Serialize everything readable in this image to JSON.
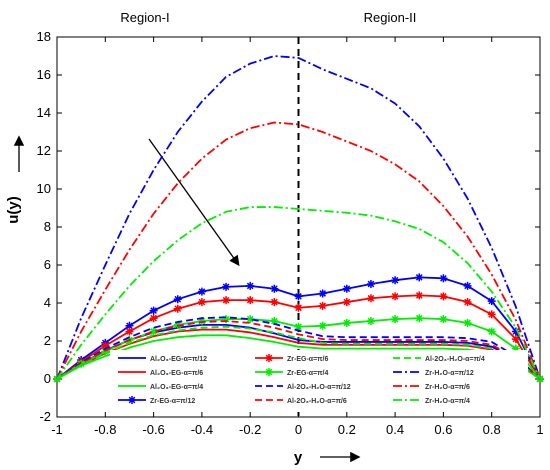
{
  "chart_data": {
    "type": "line",
    "title": "",
    "xlabel": "y",
    "ylabel": "u(y)",
    "xlim": [
      -1,
      1
    ],
    "ylim": [
      -2,
      18
    ],
    "xticks": [
      "-1",
      "-0.8",
      "-0.6",
      "-0.4",
      "-0.2",
      "0",
      "0.2",
      "0.4",
      "0.6",
      "0.8",
      "1"
    ],
    "yticks": [
      "-2",
      "0",
      "2",
      "4",
      "6",
      "8",
      "10",
      "12",
      "14",
      "16",
      "18"
    ],
    "grid": false,
    "legend_position": "bottom",
    "regions": [
      "Region-I",
      "Region-II"
    ],
    "divider_x": 0,
    "x": [
      -1,
      -0.9,
      -0.8,
      -0.7,
      -0.6,
      -0.5,
      -0.4,
      -0.3,
      -0.2,
      -0.1,
      0,
      0.1,
      0.2,
      0.3,
      0.4,
      0.5,
      0.6,
      0.7,
      0.8,
      0.9,
      1
    ],
    "series": [
      {
        "name": "Al₂O₃-EG-α=π/12",
        "color": "#0000ff",
        "dash": "solid",
        "marker": "none",
        "values": [
          0,
          0.8,
          1.5,
          2.05,
          2.45,
          2.7,
          2.85,
          2.85,
          2.7,
          2.4,
          2.05,
          1.95,
          1.95,
          1.95,
          1.95,
          1.95,
          1.95,
          1.9,
          1.7,
          1.05,
          0
        ]
      },
      {
        "name": "Al₂O₃-EG-α=π/6",
        "color": "#ff0000",
        "dash": "solid",
        "marker": "none",
        "values": [
          0,
          0.75,
          1.35,
          1.85,
          2.25,
          2.5,
          2.6,
          2.6,
          2.45,
          2.2,
          1.9,
          1.8,
          1.8,
          1.8,
          1.8,
          1.8,
          1.8,
          1.75,
          1.55,
          0.95,
          0
        ]
      },
      {
        "name": "Al₂O₃-EG-α=π/4",
        "color": "#00ee00",
        "dash": "solid",
        "marker": "none",
        "values": [
          0,
          0.7,
          1.2,
          1.65,
          2.0,
          2.2,
          2.3,
          2.3,
          2.15,
          1.95,
          1.7,
          1.6,
          1.6,
          1.6,
          1.6,
          1.6,
          1.6,
          1.55,
          1.35,
          0.85,
          0
        ]
      },
      {
        "name": "Zr-EG-α=π/12",
        "color": "#0000ff",
        "dash": "solid",
        "marker": "star",
        "values": [
          0,
          1.0,
          1.9,
          2.8,
          3.6,
          4.2,
          4.6,
          4.85,
          4.9,
          4.75,
          4.35,
          4.5,
          4.75,
          5.0,
          5.2,
          5.35,
          5.3,
          4.9,
          4.1,
          2.5,
          0
        ]
      },
      {
        "name": "Zr-EG-α=π/6",
        "color": "#ff0000",
        "dash": "solid",
        "marker": "star",
        "values": [
          0,
          0.9,
          1.75,
          2.5,
          3.2,
          3.7,
          4.05,
          4.15,
          4.15,
          4.05,
          3.75,
          3.85,
          4.05,
          4.25,
          4.35,
          4.4,
          4.35,
          4.05,
          3.4,
          2.1,
          0
        ]
      },
      {
        "name": "Zr-EG-α=π/4",
        "color": "#00ee00",
        "dash": "solid",
        "marker": "star",
        "values": [
          0,
          0.8,
          1.45,
          2.05,
          2.5,
          2.85,
          3.05,
          3.15,
          3.15,
          3.05,
          2.75,
          2.8,
          2.95,
          3.05,
          3.15,
          3.2,
          3.15,
          2.95,
          2.5,
          1.6,
          0
        ]
      },
      {
        "name": "Al-2O₃-H₂O-α=π/12",
        "color": "#0000ff",
        "dash": "dash",
        "marker": "none",
        "values": [
          0,
          0.85,
          1.6,
          2.2,
          2.7,
          3.0,
          3.2,
          3.25,
          3.15,
          2.9,
          2.55,
          2.25,
          2.2,
          2.2,
          2.2,
          2.2,
          2.2,
          2.15,
          1.95,
          1.2,
          0
        ]
      },
      {
        "name": "Al-2O₃-H₂O-α=π/6",
        "color": "#ff0000",
        "dash": "dash",
        "marker": "none",
        "values": [
          0,
          0.8,
          1.5,
          2.05,
          2.5,
          2.8,
          3.0,
          3.05,
          2.95,
          2.7,
          2.35,
          2.1,
          2.05,
          2.05,
          2.05,
          2.05,
          2.05,
          2.0,
          1.8,
          1.1,
          0
        ]
      },
      {
        "name": "Al-2O₃-H₂O-α=π/4",
        "color": "#00ee00",
        "dash": "dash",
        "marker": "none",
        "values": [
          0,
          0.75,
          1.35,
          1.9,
          2.3,
          2.55,
          2.7,
          2.75,
          2.65,
          2.45,
          2.15,
          1.9,
          1.85,
          1.85,
          1.85,
          1.85,
          1.85,
          1.8,
          1.6,
          1.0,
          0
        ]
      },
      {
        "name": "Zr-H₂O-α=π/12",
        "color": "#0000ff",
        "dash": "dashdot",
        "marker": "none",
        "values": [
          0,
          3.2,
          6.0,
          8.7,
          11.0,
          13.0,
          14.6,
          15.9,
          16.6,
          17.0,
          16.9,
          16.3,
          15.8,
          15.3,
          14.5,
          13.3,
          11.6,
          9.5,
          6.9,
          3.8,
          0
        ]
      },
      {
        "name": "Zr-H₂O-α=π/6",
        "color": "#ff0000",
        "dash": "dashdot",
        "marker": "none",
        "values": [
          0,
          2.5,
          4.7,
          6.8,
          8.7,
          10.3,
          11.6,
          12.6,
          13.2,
          13.5,
          13.4,
          13.0,
          12.5,
          12.0,
          11.3,
          10.4,
          9.1,
          7.5,
          5.5,
          3.1,
          0
        ]
      },
      {
        "name": "Zr-H₂O-α=π/4",
        "color": "#00ee00",
        "dash": "dashdot",
        "marker": "none",
        "values": [
          0,
          1.8,
          3.4,
          4.9,
          6.2,
          7.3,
          8.2,
          8.8,
          9.05,
          9.05,
          8.95,
          8.85,
          8.75,
          8.6,
          8.3,
          7.9,
          7.2,
          6.1,
          4.6,
          2.7,
          0
        ]
      }
    ]
  }
}
